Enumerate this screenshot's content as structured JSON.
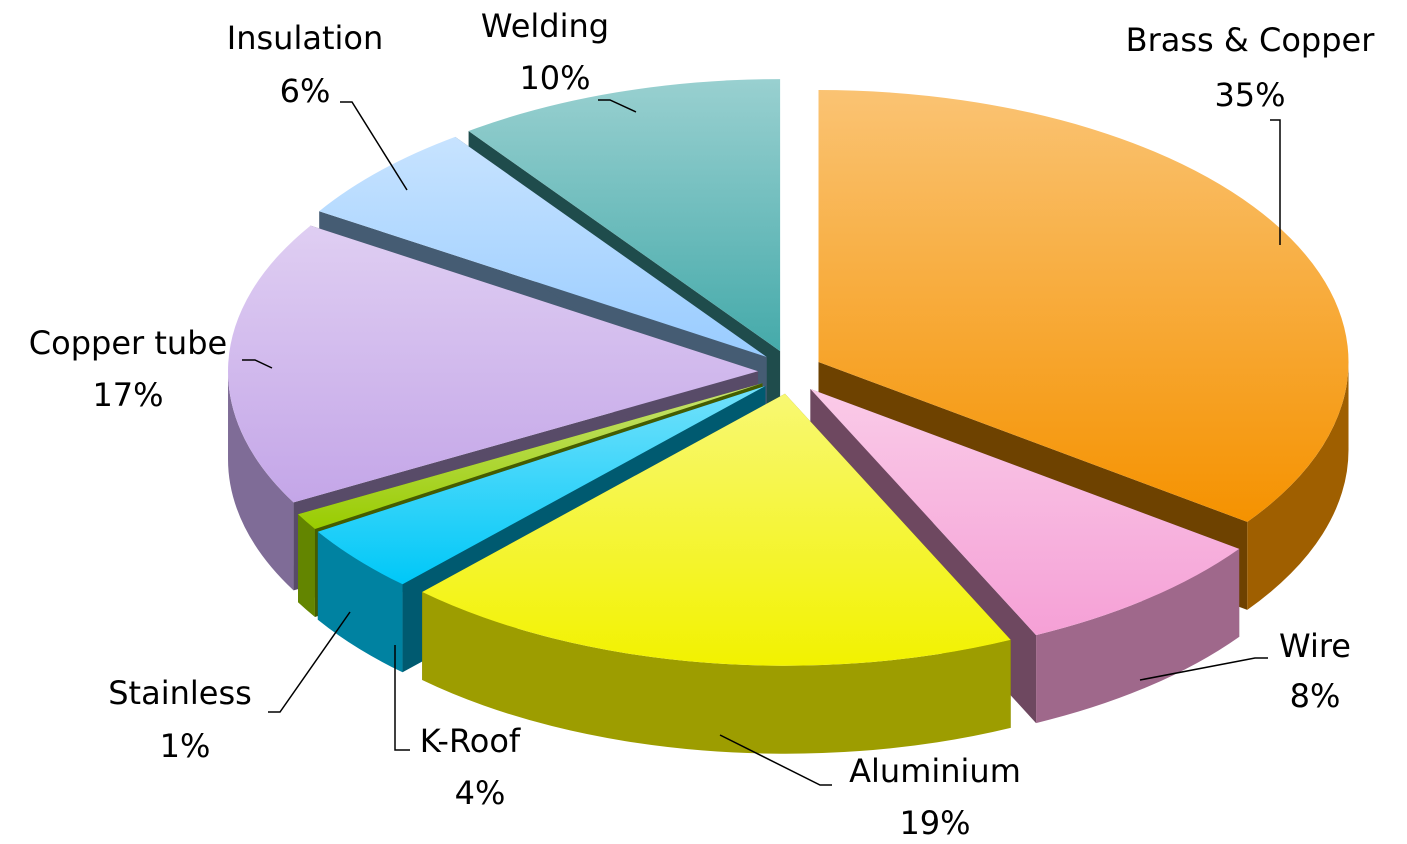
{
  "chart_data": {
    "type": "pie",
    "categories": [
      "Brass & Copper",
      "Wire",
      "Aluminium",
      "K-Roof",
      "Stainless",
      "Copper tube",
      "Insulation",
      "Welding"
    ],
    "values": [
      35,
      8,
      19,
      4,
      1,
      17,
      6,
      10
    ],
    "value_labels": [
      "35%",
      "8%",
      "19%",
      "4%",
      "1%",
      "17%",
      "6%",
      "10%"
    ],
    "colors": [
      "#f59200",
      "#f5a0d6",
      "#f2f200",
      "#00c8f8",
      "#99cc00",
      "#c4a6e8",
      "#99ccff",
      "#45aaaa"
    ]
  }
}
